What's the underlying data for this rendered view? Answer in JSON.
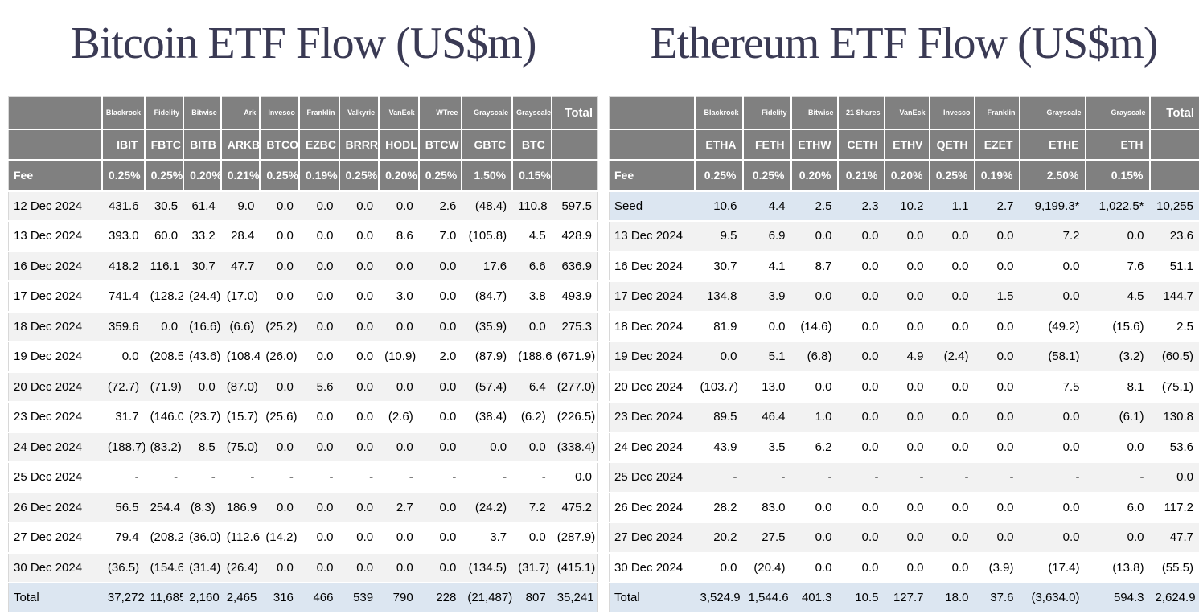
{
  "colors": {
    "header_bg": "#808080",
    "stripe_bg": "#f2f2f2",
    "highlight_bg": "#dce6f1",
    "negative_text": "#ff0000",
    "title_text": "#3a3a54"
  },
  "chart_data": [
    {
      "type": "table",
      "title": "Bitcoin ETF Flow (US$m)",
      "institutions": [
        "Blackrock",
        "Fidelity",
        "Bitwise",
        "Ark",
        "Invesco",
        "Franklin",
        "Valkyrie",
        "VanEck",
        "WTree",
        "Grayscale",
        "Grayscale"
      ],
      "total_header": "Total",
      "tickers": [
        "IBIT",
        "FBTC",
        "BITB",
        "ARKB",
        "BTCO",
        "EZBC",
        "BRRR",
        "HODL",
        "BTCW",
        "GBTC",
        "BTC"
      ],
      "fee_row_label": "Fee",
      "fees": [
        "0.25%",
        "0.25%",
        "0.20%",
        "0.21%",
        "0.25%",
        "0.19%",
        "0.25%",
        "0.20%",
        "0.25%",
        "1.50%",
        "0.15%"
      ],
      "rows": [
        {
          "label": "12 Dec 2024",
          "highlight": false,
          "values": [
            "431.6",
            "30.5",
            "61.4",
            "9.0",
            "0.0",
            "0.0",
            "0.0",
            "0.0",
            "2.6",
            "(48.4)",
            "110.8",
            "597.5"
          ]
        },
        {
          "label": "13 Dec 2024",
          "highlight": false,
          "values": [
            "393.0",
            "60.0",
            "33.2",
            "28.4",
            "0.0",
            "0.0",
            "0.0",
            "8.6",
            "7.0",
            "(105.8)",
            "4.5",
            "428.9"
          ]
        },
        {
          "label": "16 Dec 2024",
          "highlight": false,
          "values": [
            "418.2",
            "116.1",
            "30.7",
            "47.7",
            "0.0",
            "0.0",
            "0.0",
            "0.0",
            "0.0",
            "17.6",
            "6.6",
            "636.9"
          ]
        },
        {
          "label": "17 Dec 2024",
          "highlight": false,
          "values": [
            "741.4",
            "(128.2)",
            "(24.4)",
            "(17.0)",
            "0.0",
            "0.0",
            "0.0",
            "3.0",
            "0.0",
            "(84.7)",
            "3.8",
            "493.9"
          ]
        },
        {
          "label": "18 Dec 2024",
          "highlight": false,
          "values": [
            "359.6",
            "0.0",
            "(16.6)",
            "(6.6)",
            "(25.2)",
            "0.0",
            "0.0",
            "0.0",
            "0.0",
            "(35.9)",
            "0.0",
            "275.3"
          ]
        },
        {
          "label": "19 Dec 2024",
          "highlight": false,
          "values": [
            "0.0",
            "(208.5)",
            "(43.6)",
            "(108.4)",
            "(26.0)",
            "0.0",
            "0.0",
            "(10.9)",
            "2.0",
            "(87.9)",
            "(188.6)",
            "(671.9)"
          ]
        },
        {
          "label": "20 Dec 2024",
          "highlight": false,
          "values": [
            "(72.7)",
            "(71.9)",
            "0.0",
            "(87.0)",
            "0.0",
            "5.6",
            "0.0",
            "0.0",
            "0.0",
            "(57.4)",
            "6.4",
            "(277.0)"
          ]
        },
        {
          "label": "23 Dec 2024",
          "highlight": false,
          "values": [
            "31.7",
            "(146.0)",
            "(23.7)",
            "(15.7)",
            "(25.6)",
            "0.0",
            "0.0",
            "(2.6)",
            "0.0",
            "(38.4)",
            "(6.2)",
            "(226.5)"
          ]
        },
        {
          "label": "24 Dec 2024",
          "highlight": false,
          "values": [
            "(188.7)",
            "(83.2)",
            "8.5",
            "(75.0)",
            "0.0",
            "0.0",
            "0.0",
            "0.0",
            "0.0",
            "0.0",
            "0.0",
            "(338.4)"
          ]
        },
        {
          "label": "25 Dec 2024",
          "highlight": false,
          "values": [
            "-",
            "-",
            "-",
            "-",
            "-",
            "-",
            "-",
            "-",
            "-",
            "-",
            "-",
            "0.0"
          ]
        },
        {
          "label": "26 Dec 2024",
          "highlight": false,
          "values": [
            "56.5",
            "254.4",
            "(8.3)",
            "186.9",
            "0.0",
            "0.0",
            "0.0",
            "2.7",
            "0.0",
            "(24.2)",
            "7.2",
            "475.2"
          ]
        },
        {
          "label": "27 Dec 2024",
          "highlight": false,
          "values": [
            "79.4",
            "(208.2)",
            "(36.0)",
            "(112.6)",
            "(14.2)",
            "0.0",
            "0.0",
            "0.0",
            "0.0",
            "3.7",
            "0.0",
            "(287.9)"
          ]
        },
        {
          "label": "30 Dec 2024",
          "highlight": false,
          "values": [
            "(36.5)",
            "(154.6)",
            "(31.4)",
            "(26.4)",
            "0.0",
            "0.0",
            "0.0",
            "0.0",
            "0.0",
            "(134.5)",
            "(31.7)",
            "(415.1)"
          ]
        }
      ],
      "total_row": {
        "label": "Total",
        "values": [
          "37,272",
          "11,685",
          "2,160",
          "2,465",
          "316",
          "466",
          "539",
          "790",
          "228",
          "(21,487)",
          "807",
          "35,241"
        ]
      }
    },
    {
      "type": "table",
      "title": "Ethereum ETF Flow (US$m)",
      "institutions": [
        "Blackrock",
        "Fidelity",
        "Bitwise",
        "21 Shares",
        "VanEck",
        "Invesco",
        "Franklin",
        "Grayscale",
        "Grayscale"
      ],
      "total_header": "Total",
      "tickers": [
        "ETHA",
        "FETH",
        "ETHW",
        "CETH",
        "ETHV",
        "QETH",
        "EZET",
        "ETHE",
        "ETH"
      ],
      "fee_row_label": "Fee",
      "fees": [
        "0.25%",
        "0.25%",
        "0.20%",
        "0.21%",
        "0.20%",
        "0.25%",
        "0.19%",
        "2.50%",
        "0.15%"
      ],
      "rows": [
        {
          "label": "Seed",
          "highlight": true,
          "values": [
            "10.6",
            "4.4",
            "2.5",
            "2.3",
            "10.2",
            "1.1",
            "2.7",
            "9,199.3*",
            "1,022.5*",
            "10,255"
          ]
        },
        {
          "label": "13 Dec 2024",
          "highlight": false,
          "values": [
            "9.5",
            "6.9",
            "0.0",
            "0.0",
            "0.0",
            "0.0",
            "0.0",
            "7.2",
            "0.0",
            "23.6"
          ]
        },
        {
          "label": "16 Dec 2024",
          "highlight": false,
          "values": [
            "30.7",
            "4.1",
            "8.7",
            "0.0",
            "0.0",
            "0.0",
            "0.0",
            "0.0",
            "7.6",
            "51.1"
          ]
        },
        {
          "label": "17 Dec 2024",
          "highlight": false,
          "values": [
            "134.8",
            "3.9",
            "0.0",
            "0.0",
            "0.0",
            "0.0",
            "1.5",
            "0.0",
            "4.5",
            "144.7"
          ]
        },
        {
          "label": "18 Dec 2024",
          "highlight": false,
          "values": [
            "81.9",
            "0.0",
            "(14.6)",
            "0.0",
            "0.0",
            "0.0",
            "0.0",
            "(49.2)",
            "(15.6)",
            "2.5"
          ]
        },
        {
          "label": "19 Dec 2024",
          "highlight": false,
          "values": [
            "0.0",
            "5.1",
            "(6.8)",
            "0.0",
            "4.9",
            "(2.4)",
            "0.0",
            "(58.1)",
            "(3.2)",
            "(60.5)"
          ]
        },
        {
          "label": "20 Dec 2024",
          "highlight": false,
          "values": [
            "(103.7)",
            "13.0",
            "0.0",
            "0.0",
            "0.0",
            "0.0",
            "0.0",
            "7.5",
            "8.1",
            "(75.1)"
          ]
        },
        {
          "label": "23 Dec 2024",
          "highlight": false,
          "values": [
            "89.5",
            "46.4",
            "1.0",
            "0.0",
            "0.0",
            "0.0",
            "0.0",
            "0.0",
            "(6.1)",
            "130.8"
          ]
        },
        {
          "label": "24 Dec 2024",
          "highlight": false,
          "values": [
            "43.9",
            "3.5",
            "6.2",
            "0.0",
            "0.0",
            "0.0",
            "0.0",
            "0.0",
            "0.0",
            "53.6"
          ]
        },
        {
          "label": "25 Dec 2024",
          "highlight": false,
          "values": [
            "-",
            "-",
            "-",
            "-",
            "-",
            "-",
            "-",
            "-",
            "-",
            "0.0"
          ]
        },
        {
          "label": "26 Dec 2024",
          "highlight": false,
          "values": [
            "28.2",
            "83.0",
            "0.0",
            "0.0",
            "0.0",
            "0.0",
            "0.0",
            "0.0",
            "6.0",
            "117.2"
          ]
        },
        {
          "label": "27 Dec 2024",
          "highlight": false,
          "values": [
            "20.2",
            "27.5",
            "0.0",
            "0.0",
            "0.0",
            "0.0",
            "0.0",
            "0.0",
            "0.0",
            "47.7"
          ]
        },
        {
          "label": "30 Dec 2024",
          "highlight": false,
          "values": [
            "0.0",
            "(20.4)",
            "0.0",
            "0.0",
            "0.0",
            "0.0",
            "(3.9)",
            "(17.4)",
            "(13.8)",
            "(55.5)"
          ]
        }
      ],
      "total_row": {
        "label": "Total",
        "values": [
          "3,524.9",
          "1,544.6",
          "401.3",
          "10.5",
          "127.7",
          "18.0",
          "37.6",
          "(3,634.0)",
          "594.3",
          "2,624.9"
        ]
      }
    }
  ]
}
